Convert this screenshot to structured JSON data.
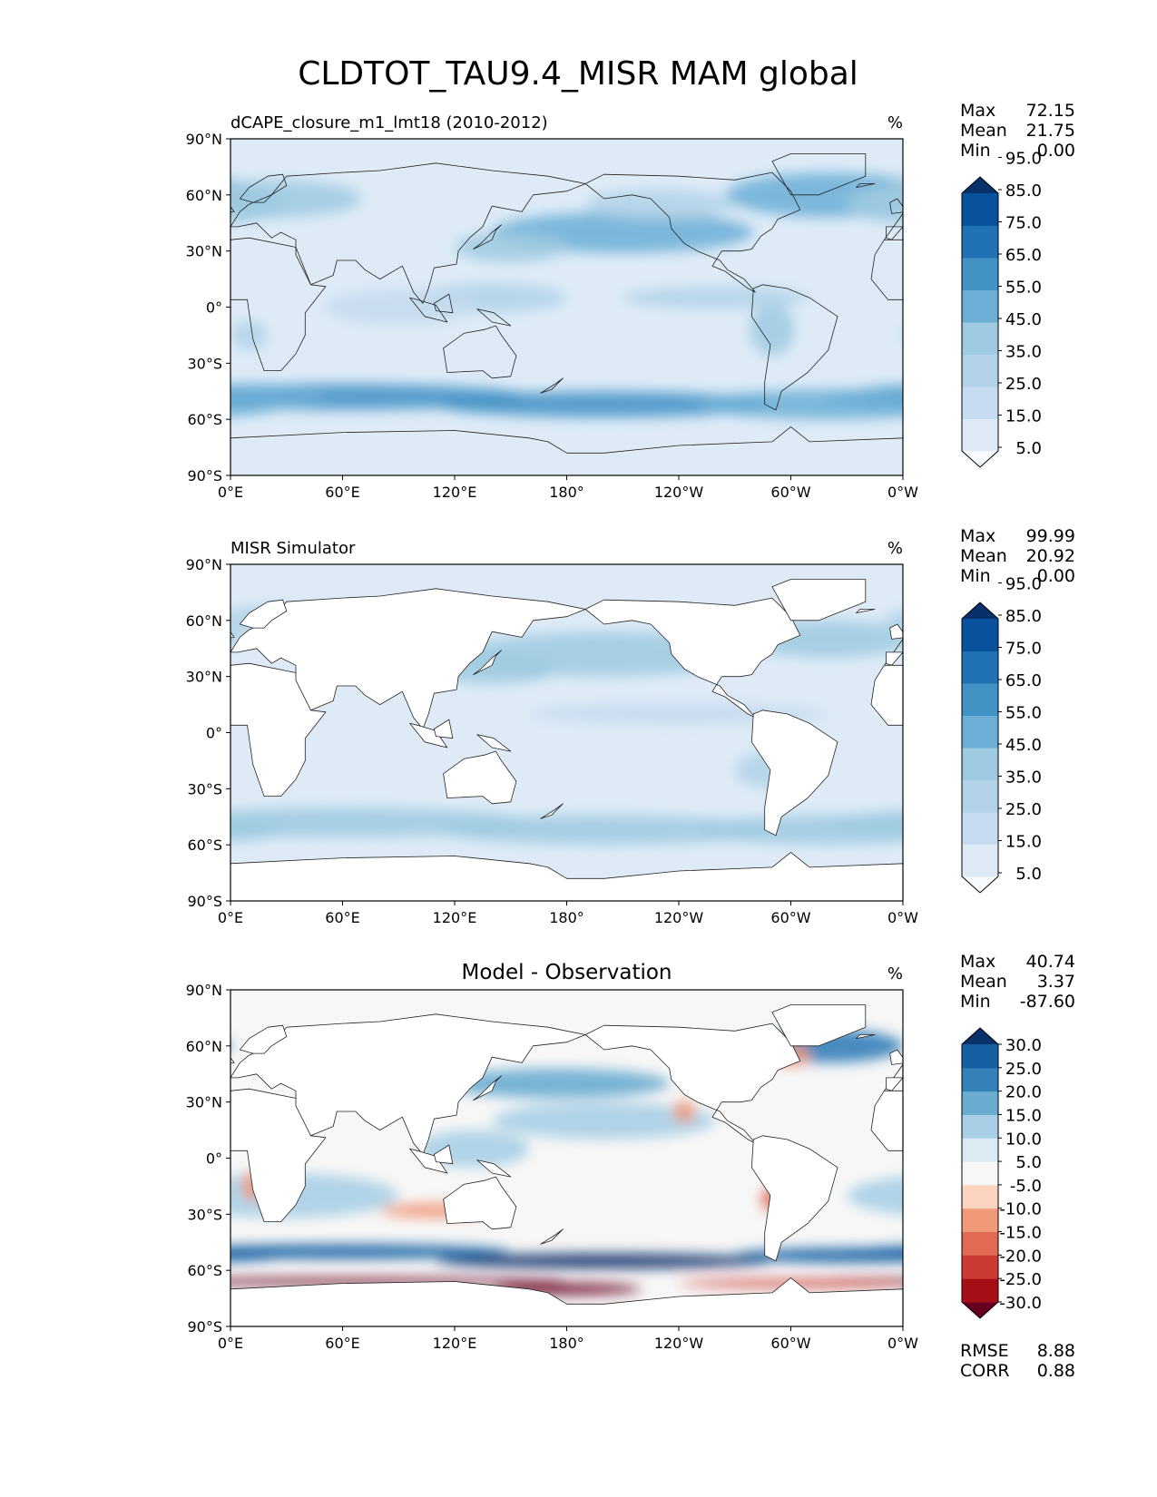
{
  "figure": {
    "title": "CLDTOT_TAU9.4_MISR MAM global",
    "stat_labels": {
      "max": "Max",
      "mean": "Mean",
      "min": "Min",
      "rmse": "RMSE",
      "corr": "CORR"
    }
  },
  "chart_data": [
    {
      "type": "heatmap",
      "kind": "model",
      "title_left": "dCAPE_closure_m1_lmt18 (2010-2012)",
      "title_center": "",
      "units": "%",
      "stats": {
        "max": "72.15",
        "mean": "21.75",
        "min": "0.00"
      },
      "y_ticks": [
        "90°N",
        "60°N",
        "30°N",
        "0°",
        "30°S",
        "60°S",
        "90°S"
      ],
      "x_ticks": [
        "0°E",
        "60°E",
        "120°E",
        "180°",
        "120°W",
        "60°W",
        "0°W"
      ],
      "xlim": [
        0,
        360
      ],
      "ylim": [
        -90,
        90
      ],
      "colorbar": {
        "colors": [
          "#f7fbff",
          "#deebf7",
          "#c6dbef",
          "#b1d2e8",
          "#9ecae1",
          "#6baed6",
          "#4292c6",
          "#2171b5",
          "#08519c",
          "#08306b"
        ],
        "tick_labels": [
          "5.0",
          "15.0",
          "25.0",
          "35.0",
          "45.0",
          "55.0",
          "65.0",
          "75.0",
          "85.0",
          "95.0"
        ]
      },
      "field": "model_cloud"
    },
    {
      "type": "heatmap",
      "kind": "obs",
      "title_left": "MISR Simulator",
      "title_center": "",
      "units": "%",
      "stats": {
        "max": "99.99",
        "mean": "20.92",
        "min": "0.00"
      },
      "y_ticks": [
        "90°N",
        "60°N",
        "30°N",
        "0°",
        "30°S",
        "60°S",
        "90°S"
      ],
      "x_ticks": [
        "0°E",
        "60°E",
        "120°E",
        "180°",
        "120°W",
        "60°W",
        "0°W"
      ],
      "xlim": [
        0,
        360
      ],
      "ylim": [
        -90,
        90
      ],
      "colorbar": {
        "colors": [
          "#f7fbff",
          "#deebf7",
          "#c6dbef",
          "#b1d2e8",
          "#9ecae1",
          "#6baed6",
          "#4292c6",
          "#2171b5",
          "#08519c",
          "#08306b"
        ],
        "tick_labels": [
          "5.0",
          "15.0",
          "25.0",
          "35.0",
          "45.0",
          "55.0",
          "65.0",
          "75.0",
          "85.0",
          "95.0"
        ]
      },
      "field": "obs_cloud"
    },
    {
      "type": "heatmap",
      "kind": "diff",
      "title_left": "",
      "title_center": "Model - Observation",
      "units": "%",
      "stats": {
        "max": "40.74",
        "mean": "3.37",
        "min": "-87.60",
        "rmse": "8.88",
        "corr": "0.88"
      },
      "y_ticks": [
        "90°N",
        "60°N",
        "30°N",
        "0°",
        "30°S",
        "60°S",
        "90°S"
      ],
      "x_ticks": [
        "0°E",
        "60°E",
        "120°E",
        "180°",
        "120°W",
        "60°W",
        "0°W"
      ],
      "xlim": [
        0,
        360
      ],
      "ylim": [
        -90,
        90
      ],
      "colorbar": {
        "colors": [
          "#67001f",
          "#a50f15",
          "#cb3a33",
          "#e16a54",
          "#f09a7a",
          "#fbd3bf",
          "#f7f7f7",
          "#dcebf3",
          "#a8cfe5",
          "#6aacd0",
          "#3480b9",
          "#175fa3",
          "#08306b"
        ],
        "tick_labels": [
          "-30.0",
          "-25.0",
          "-20.0",
          "-15.0",
          "-10.0",
          "-5.0",
          "5.0",
          "10.0",
          "15.0",
          "20.0",
          "25.0",
          "30.0"
        ]
      },
      "field": "difference"
    }
  ]
}
